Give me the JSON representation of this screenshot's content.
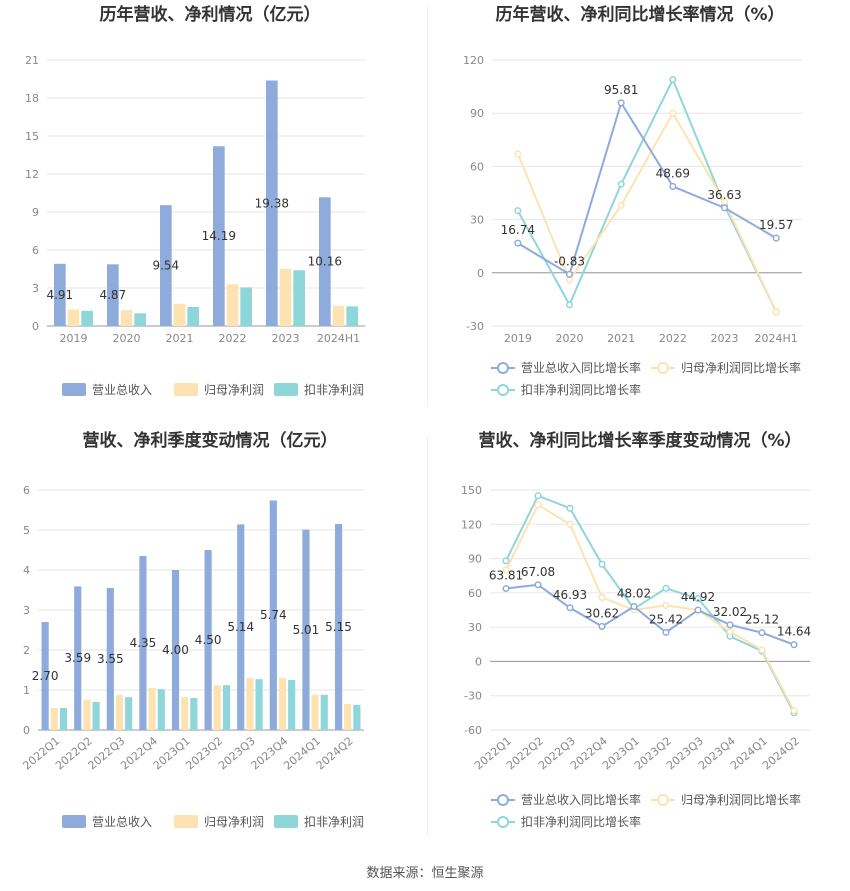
{
  "colors": {
    "revenue": "#8eabdb",
    "net_profit": "#fde3b2",
    "deducted_profit": "#8fd6da",
    "grid": "#e6e6e6",
    "axis_text": "#888888",
    "title": "#333333"
  },
  "source_text": "数据来源：恒生聚源",
  "chart_data": [
    {
      "type": "bar",
      "title": "历年营收、净利情况（亿元）",
      "categories": [
        "2019",
        "2020",
        "2021",
        "2022",
        "2023",
        "2024H1"
      ],
      "ylim": [
        0,
        21
      ],
      "yticks": [
        0,
        3,
        6,
        9,
        12,
        15,
        18,
        21
      ],
      "series": [
        {
          "name": "营业总收入",
          "values": [
            4.91,
            4.87,
            9.54,
            14.19,
            19.38,
            10.16
          ],
          "labels": [
            "4.91",
            "4.87",
            "9.54",
            "14.19",
            "19.38",
            "10.16"
          ]
        },
        {
          "name": "归母净利润",
          "values": [
            1.3,
            1.25,
            1.75,
            3.3,
            4.5,
            1.6
          ]
        },
        {
          "name": "扣非净利润",
          "values": [
            1.2,
            1.0,
            1.5,
            3.05,
            4.4,
            1.55
          ]
        }
      ],
      "legend_position": "bottom",
      "grid": true
    },
    {
      "type": "line",
      "title": "历年营收、净利同比增长率情况（%）",
      "categories": [
        "2019",
        "2020",
        "2021",
        "2022",
        "2023",
        "2024H1"
      ],
      "ylim": [
        -30,
        120
      ],
      "yticks": [
        -30,
        0,
        30,
        60,
        90,
        120
      ],
      "series": [
        {
          "name": "营业总收入同比增长率",
          "values": [
            16.74,
            -0.83,
            95.81,
            48.69,
            36.63,
            19.57
          ],
          "labels": [
            "16.74",
            "-0.83",
            "95.81",
            "48.69",
            "36.63",
            "19.57"
          ]
        },
        {
          "name": "归母净利润同比增长率",
          "values": [
            67,
            -4,
            38,
            90,
            40,
            -22
          ]
        },
        {
          "name": "扣非净利润同比增长率",
          "values": [
            35,
            -18,
            50,
            109,
            38,
            -22
          ]
        }
      ],
      "legend_position": "bottom",
      "grid": true
    },
    {
      "type": "bar",
      "title": "营收、净利季度变动情况（亿元）",
      "categories": [
        "2022Q1",
        "2022Q2",
        "2022Q3",
        "2022Q4",
        "2023Q1",
        "2023Q2",
        "2023Q3",
        "2023Q4",
        "2024Q1",
        "2024Q2"
      ],
      "ylim": [
        0,
        6
      ],
      "yticks": [
        0,
        1,
        2,
        3,
        4,
        5,
        6
      ],
      "series": [
        {
          "name": "营业总收入",
          "values": [
            2.7,
            3.59,
            3.55,
            4.35,
            4.0,
            4.5,
            5.14,
            5.74,
            5.01,
            5.15
          ],
          "labels": [
            "2.70",
            "3.59",
            "3.55",
            "4.35",
            "4.00",
            "4.50",
            "5.14",
            "5.74",
            "5.01",
            "5.15"
          ]
        },
        {
          "name": "归母净利润",
          "values": [
            0.55,
            0.75,
            0.88,
            1.05,
            0.82,
            1.12,
            1.3,
            1.3,
            0.88,
            0.65
          ]
        },
        {
          "name": "扣非净利润",
          "values": [
            0.55,
            0.7,
            0.82,
            1.02,
            0.8,
            1.12,
            1.27,
            1.25,
            0.88,
            0.63
          ]
        }
      ],
      "legend_position": "bottom",
      "grid": true
    },
    {
      "type": "line",
      "title": "营收、净利同比增长率季度变动情况（%）",
      "categories": [
        "2022Q1",
        "2022Q2",
        "2022Q3",
        "2022Q4",
        "2023Q1",
        "2023Q2",
        "2023Q3",
        "2023Q4",
        "2024Q1",
        "2024Q2"
      ],
      "ylim": [
        -60,
        150
      ],
      "yticks": [
        -60,
        -30,
        0,
        30,
        60,
        90,
        120,
        150
      ],
      "series": [
        {
          "name": "营业总收入同比增长率",
          "values": [
            63.81,
            67.08,
            46.93,
            30.62,
            48.02,
            25.42,
            44.92,
            32.02,
            25.12,
            14.64
          ],
          "labels": [
            "63.81",
            "67.08",
            "46.93",
            "30.62",
            "48.02",
            "25.42",
            "44.92",
            "32.02",
            "25.12",
            "14.64"
          ]
        },
        {
          "name": "归母净利润同比增长率",
          "values": [
            80,
            137,
            120,
            56,
            45,
            49,
            45,
            26,
            10,
            -43
          ]
        },
        {
          "name": "扣非净利润同比增长率",
          "values": [
            88,
            145,
            134,
            85,
            46,
            64,
            55,
            22,
            9,
            -45
          ]
        }
      ],
      "legend_position": "bottom",
      "grid": true
    }
  ]
}
